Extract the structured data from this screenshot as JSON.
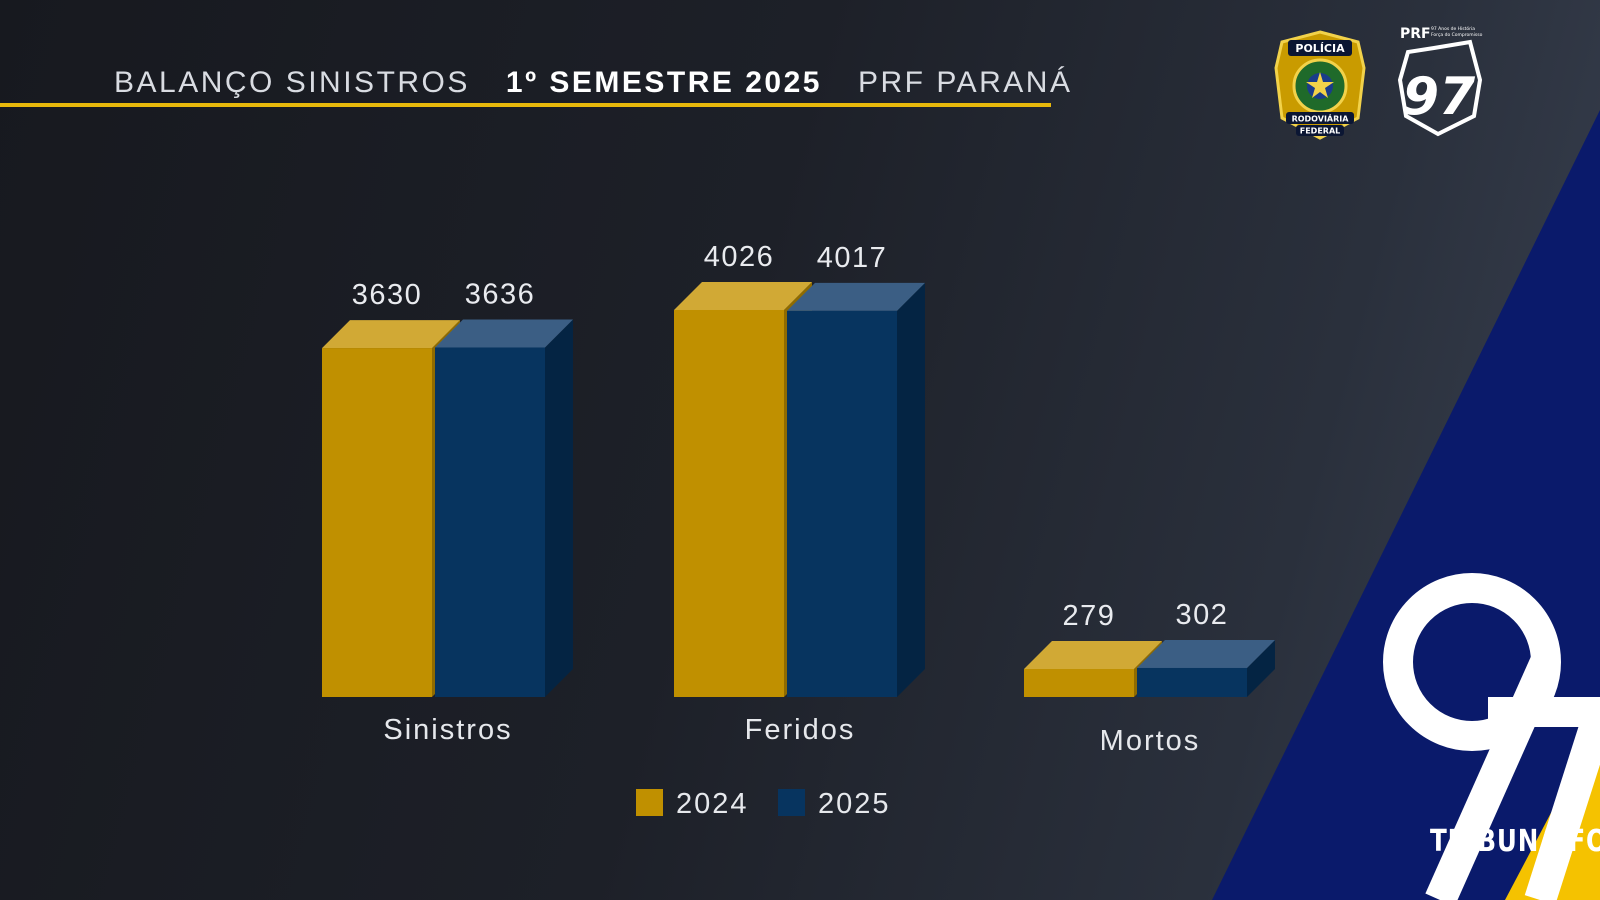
{
  "header": {
    "title_part1": "BALANÇO SINISTROS",
    "title_part2": "1º SEMESTRE 2025",
    "title_part3": "PRF PARANÁ"
  },
  "logos": {
    "badge_top": "POLÍCIA",
    "badge_bottom_1": "RODOVIÁRIA",
    "badge_bottom_2": "FEDERAL",
    "prf_label": "PRF",
    "prf_small_1": "97 Anos de História",
    "prf_small_2": "Força do Compromisso",
    "shield_number": "97",
    "big_number": "97"
  },
  "watermark": {
    "text": "TRIBUNA FOZ"
  },
  "colors": {
    "gold": "#c09000",
    "navy": "#07345f",
    "accent_line": "#e7b80b",
    "diagonal_blue": "#0a1a6b",
    "diagonal_yellow": "#f5c200"
  },
  "chart_data": {
    "type": "bar",
    "categories": [
      "Sinistros",
      "Feridos",
      "Mortos"
    ],
    "series": [
      {
        "name": "2024",
        "values": [
          3630,
          4026,
          279
        ]
      },
      {
        "name": "2025",
        "values": [
          3636,
          4017,
          302
        ]
      }
    ],
    "legend": {
      "position": "bottom",
      "entries": [
        "2024",
        "2025"
      ]
    },
    "grid": false,
    "ylim": [
      0,
      4100
    ]
  }
}
